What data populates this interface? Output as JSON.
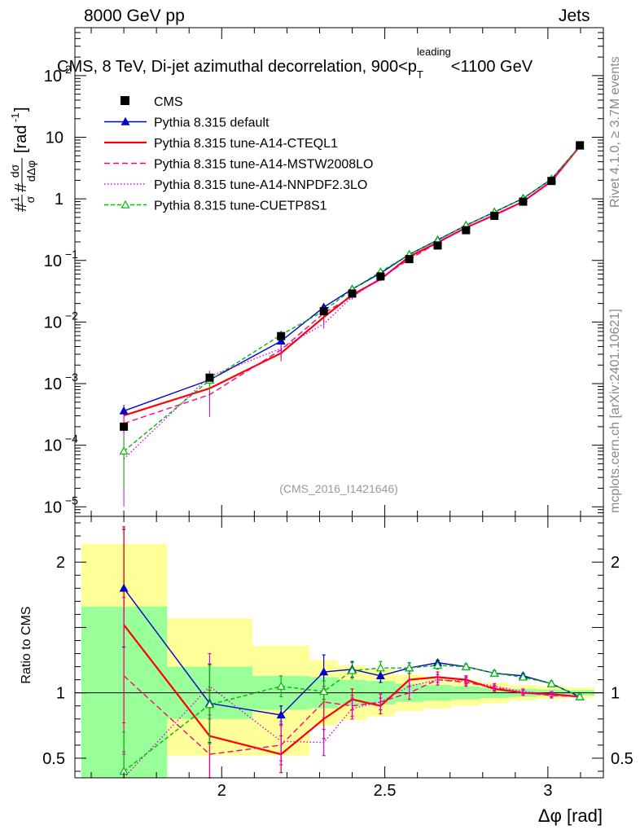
{
  "header": {
    "energy": "8000 GeV pp",
    "process": "Jets"
  },
  "side": {
    "rivet": "Rivet 4.1.0, ≥ 3.7M events",
    "site": "mcplots.cern.ch [arXiv:2401.10621]"
  },
  "chart_data": {
    "type": "line",
    "title": "CMS, 8 TeV, Di-jet azimuthal decorrelation, 900<p_T^leading<1100 GeV",
    "title_parts": {
      "pre": "CMS, 8 TeV, Di-jet azimuthal decorrelation, 900<p",
      "sub": "T",
      "sup": "leading",
      "post": "<1100 GeV"
    },
    "analysis_id": "(CMS_2016_I1421646)",
    "xlabel": "Δφ [rad]",
    "ylabel": "#1/σ # dσ/dΔφ [rad⁻¹]",
    "ylabel_parts": {
      "prefix": "#",
      "one": "1",
      "sigma": "σ",
      "mid": "#",
      "num": "dσ",
      "den": "dΔφ",
      "unit": "[rad",
      "unit_sup": "-1",
      "unit_end": "]"
    },
    "ratio_ylabel": "Ratio to CMS",
    "xlim": [
      1.55,
      3.17
    ],
    "ylim_top": [
      7e-06,
      600
    ],
    "ylim_ratio": [
      0.35,
      2.35
    ],
    "x_ticks": [
      2,
      2.5,
      3
    ],
    "x_tick_labels": [
      "2",
      "2.5",
      "3"
    ],
    "y_ticks_top": [
      {
        "base": "10",
        "exp": "2"
      },
      {
        "base": "10",
        "exp": ""
      },
      {
        "base": "1",
        "exp": ""
      },
      {
        "base": "10",
        "exp": "−1"
      },
      {
        "base": "10",
        "exp": "−2"
      },
      {
        "base": "10",
        "exp": "−3"
      },
      {
        "base": "10",
        "exp": "−4"
      },
      {
        "base": "10",
        "exp": "−5"
      }
    ],
    "y_ticks_top_values": [
      100,
      10,
      1,
      0.1,
      0.01,
      0.001,
      0.0001,
      1e-05
    ],
    "y_ticks_ratio": [
      2,
      1,
      0.5
    ],
    "y_ticks_ratio_labels": [
      "2",
      "1",
      "0.5"
    ],
    "x": [
      1.7,
      1.963,
      2.182,
      2.313,
      2.4,
      2.487,
      2.575,
      2.662,
      2.749,
      2.836,
      2.924,
      3.011,
      3.098
    ],
    "bin_edges": [
      1.57,
      1.833,
      2.094,
      2.27,
      2.356,
      2.443,
      2.531,
      2.618,
      2.705,
      2.793,
      2.88,
      2.967,
      3.054,
      3.142
    ],
    "cms": {
      "label": "CMS",
      "values": [
        0.0002,
        0.00125,
        0.0059,
        0.015,
        0.029,
        0.055,
        0.105,
        0.175,
        0.31,
        0.53,
        0.9,
        1.95,
        7.4
      ],
      "band_1sigma": [
        [
          0.32,
          1.66
        ],
        [
          0.8,
          1.2
        ],
        [
          0.87,
          1.13
        ],
        [
          0.88,
          1.12
        ],
        [
          0.9,
          1.1
        ],
        [
          0.91,
          1.09
        ],
        [
          0.93,
          1.07
        ],
        [
          0.94,
          1.06
        ],
        [
          0.95,
          1.05
        ],
        [
          0.96,
          1.04
        ],
        [
          0.97,
          1.03
        ],
        [
          0.975,
          1.025
        ],
        [
          0.98,
          1.02
        ]
      ],
      "band_2sigma": [
        [
          0.32,
          2.14
        ],
        [
          0.52,
          1.57
        ],
        [
          0.52,
          1.36
        ],
        [
          0.75,
          1.25
        ],
        [
          0.79,
          1.21
        ],
        [
          0.82,
          1.18
        ],
        [
          0.86,
          1.14
        ],
        [
          0.88,
          1.12
        ],
        [
          0.9,
          1.1
        ],
        [
          0.92,
          1.08
        ],
        [
          0.94,
          1.06
        ],
        [
          0.95,
          1.05
        ],
        [
          0.96,
          1.04
        ]
      ]
    },
    "series": [
      {
        "name": "Pythia 8.315 default",
        "color": "#0000cc",
        "dash": "",
        "marker": "triangle-filled",
        "ratio": [
          1.8,
          0.92,
          0.83,
          1.16,
          1.18,
          1.13,
          1.19,
          1.23,
          1.2,
          1.15,
          1.13,
          1.07,
          0.97
        ],
        "ratio_err": [
          0.45,
          0.3,
          0.07,
          0.13,
          0.06,
          0.05,
          0.04,
          0.02,
          0.02,
          0.02,
          0.02,
          0.02,
          0.02
        ]
      },
      {
        "name": "Pythia 8.315 tune-A14-CTEQL1",
        "color": "#ff0000",
        "dash": "",
        "marker": "none",
        "ratio": [
          1.52,
          0.67,
          0.53,
          0.8,
          0.95,
          0.9,
          1.1,
          1.12,
          1.1,
          1.03,
          1.0,
          0.99,
          0.97
        ],
        "ratio_err": [
          0.75,
          0.35,
          0.14,
          0.15,
          0.08,
          0.06,
          0.05,
          0.04,
          0.03,
          0.02,
          0.02,
          0.02,
          0.02
        ]
      },
      {
        "name": "Pythia 8.315 tune-A14-MSTW2008LO",
        "color": "#ff0080",
        "dash": "7,4",
        "marker": "none",
        "ratio": [
          1.13,
          0.53,
          0.6,
          0.93,
          0.9,
          0.93,
          1.0,
          1.1,
          1.08,
          1.04,
          1.0,
          0.98,
          0.97
        ],
        "ratio_err": [
          0.6,
          0.3,
          0.15,
          0.12,
          0.08,
          0.06,
          0.05,
          0.04,
          0.03,
          0.02,
          0.02,
          0.02,
          0.02
        ]
      },
      {
        "name": "Pythia 8.315 tune-A14-NNPDF2.3LO",
        "color": "#dd00dd",
        "dash": "1.5,2.5",
        "marker": "none",
        "ratio": [
          0.3,
          1.05,
          0.63,
          0.62,
          0.88,
          0.93,
          1.05,
          1.1,
          1.09,
          1.05,
          1.01,
          0.99,
          0.97
        ],
        "ratio_err": [
          0.25,
          0.25,
          0.15,
          0.1,
          0.08,
          0.06,
          0.05,
          0.04,
          0.03,
          0.02,
          0.02,
          0.02,
          0.02
        ]
      },
      {
        "name": "Pythia 8.315 tune-CUETP8S1",
        "color": "#00bb00",
        "dash": "5,3",
        "marker": "triangle-open",
        "ratio": [
          0.4,
          0.91,
          1.05,
          1.01,
          1.17,
          1.19,
          1.19,
          1.21,
          1.2,
          1.15,
          1.12,
          1.07,
          0.97
        ],
        "ratio_err": [
          0.3,
          0.3,
          0.08,
          0.08,
          0.06,
          0.05,
          0.04,
          0.03,
          0.02,
          0.02,
          0.02,
          0.02,
          0.02
        ]
      }
    ]
  }
}
